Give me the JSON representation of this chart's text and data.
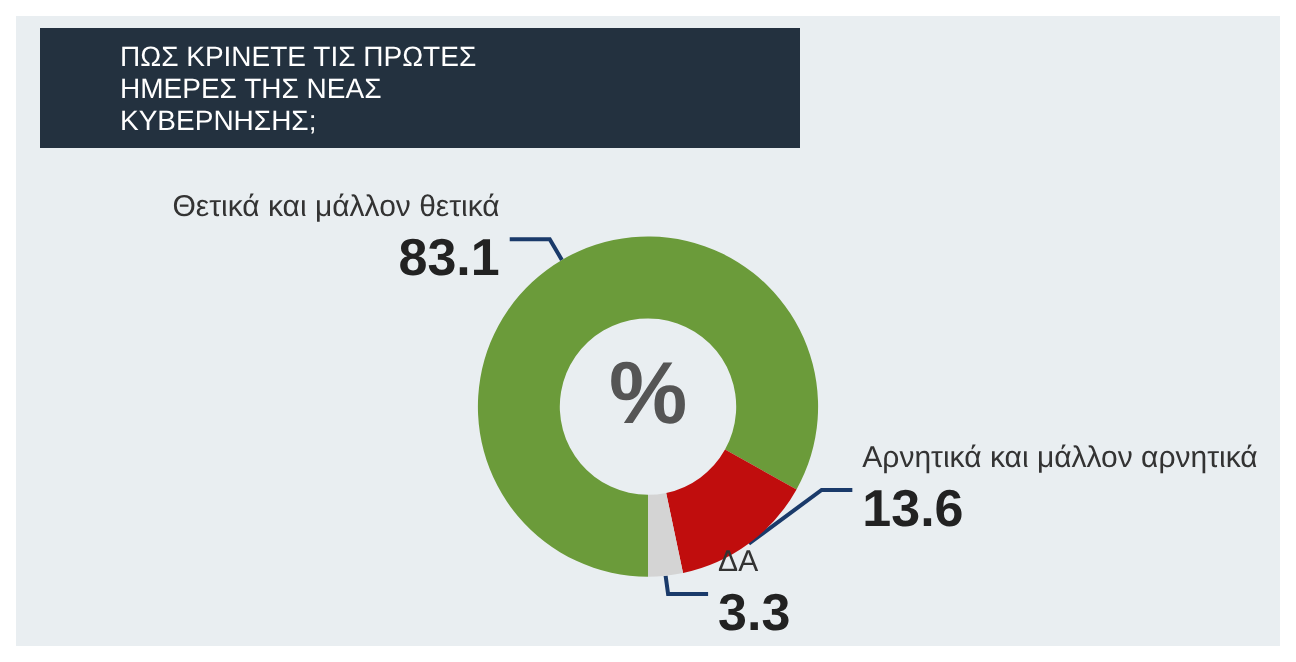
{
  "chart_data": {
    "type": "donut",
    "title": "ΠΩΣ ΚΡΙΝΕΤΕ ΤΙΣ ΠΡΩΤΕΣ ΗΜΕΡΕΣ ΤΗΣ ΝΕΑΣ ΚΥΒΕΡΝΗΣΗΣ;",
    "categories": [
      "Θετικά και μάλλον θετικά",
      "Αρνητικά και μάλλον αρνητικά",
      "ΔΑ"
    ],
    "values": [
      83.1,
      13.6,
      3.3
    ],
    "colors": [
      "#6b9b3a",
      "#c00d0d",
      "#d4d4d4"
    ],
    "annotations": [
      "%"
    ],
    "data_labels": true,
    "legend": false
  }
}
